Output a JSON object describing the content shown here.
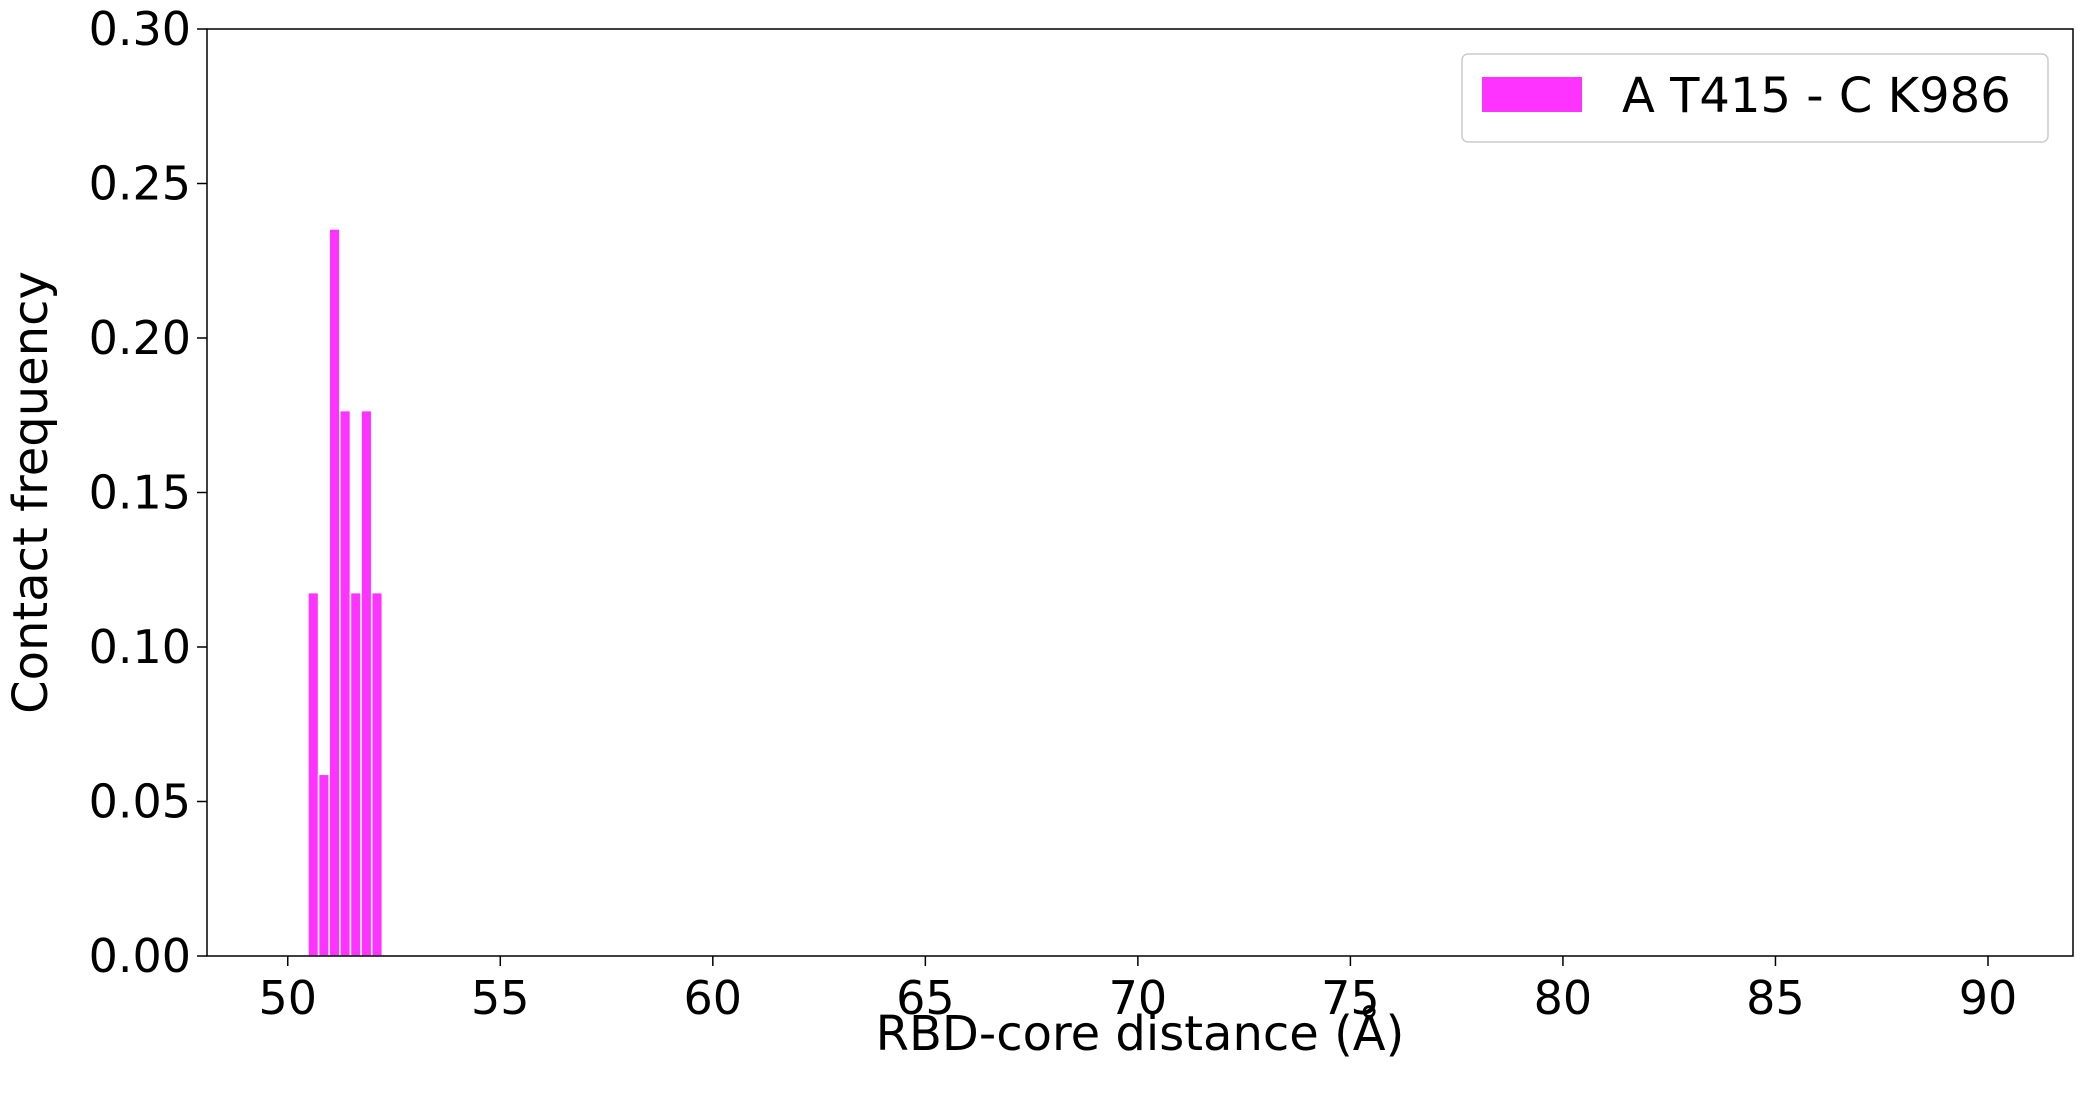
{
  "chart_data": {
    "type": "bar",
    "xlabel": "RBD-core distance (Å)",
    "ylabel": "Contact frequency",
    "xlim": [
      48.1,
      92.0
    ],
    "ylim": [
      0.0,
      0.3
    ],
    "x_ticks": [
      50,
      55,
      60,
      65,
      70,
      75,
      80,
      85,
      90
    ],
    "y_ticks": [
      "0.00",
      "0.05",
      "0.10",
      "0.15",
      "0.20",
      "0.25",
      "0.30"
    ],
    "bin_width": 0.25,
    "legend_position": "top-right",
    "grid": false,
    "series": [
      {
        "name": "A T415 - C K986",
        "color": "#ff33ff",
        "x": [
          50.6,
          50.85,
          51.1,
          51.35,
          51.6,
          51.85,
          52.1
        ],
        "values": [
          0.1176,
          0.0588,
          0.2353,
          0.1765,
          0.1176,
          0.1765,
          0.1176
        ]
      }
    ]
  }
}
